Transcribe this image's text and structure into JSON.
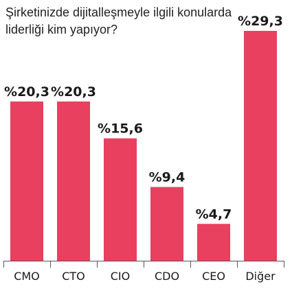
{
  "chart_data": {
    "type": "bar",
    "title": "Şirketinizde dijitalleşmeyle ilgili konularda liderliği kim yapıyor?",
    "categories": [
      "CMO",
      "CTO",
      "CIO",
      "CDO",
      "CEO",
      "Diğer"
    ],
    "values": [
      20.3,
      20.3,
      15.6,
      9.4,
      4.7,
      29.3
    ],
    "value_labels": [
      "%20,3",
      "%20,3",
      "%15,6",
      "%9,4",
      "%4,7",
      "%29,3"
    ],
    "ylim": [
      0,
      29.3
    ],
    "bar_color": "#e8405e",
    "axis_color": "#555555",
    "grid": false
  }
}
